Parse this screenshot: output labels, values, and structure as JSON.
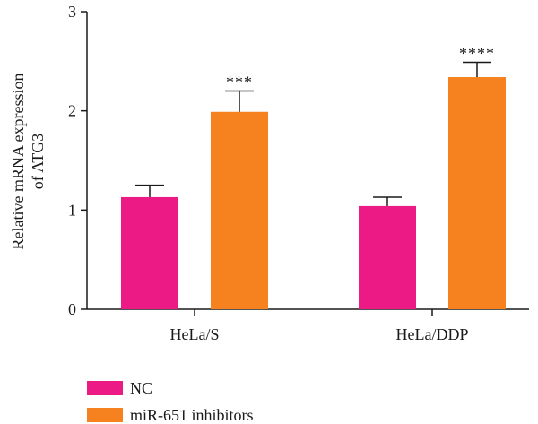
{
  "chart_data": {
    "type": "bar",
    "categories": [
      "HeLa/S",
      "HeLa/DDP"
    ],
    "series": [
      {
        "name": "NC",
        "values": [
          1.13,
          1.04
        ],
        "errors": [
          0.12,
          0.09
        ],
        "color": "#ec1a85",
        "significance": [
          "",
          ""
        ]
      },
      {
        "name": "miR-651 inhibitors",
        "values": [
          1.99,
          2.34
        ],
        "errors": [
          0.21,
          0.15
        ],
        "color": "#f5821f",
        "significance": [
          "***",
          "****"
        ]
      }
    ],
    "ylabel_lines": [
      "Relative mRNA expression",
      "of ATG3"
    ],
    "ylim": [
      0,
      3
    ],
    "yticks": [
      0,
      1,
      2,
      3
    ],
    "grid": false,
    "legend_position": "bottom-left"
  }
}
